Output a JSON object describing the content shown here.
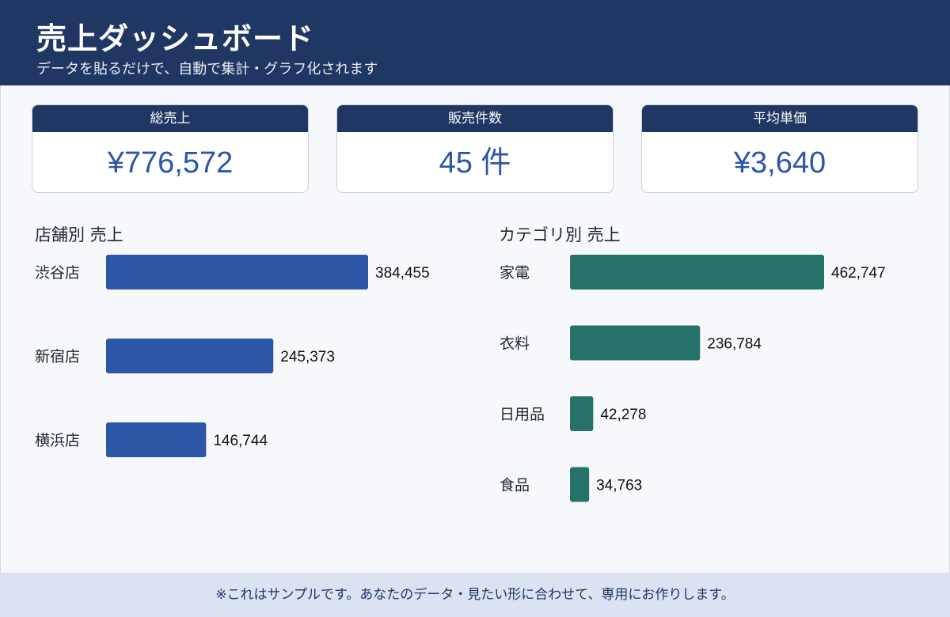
{
  "header": {
    "title": "売上ダッシュボード",
    "subtitle": "データを貼るだけで、自動で集計・グラフ化されます"
  },
  "kpis": [
    {
      "label": "総売上",
      "value": "¥776,572"
    },
    {
      "label": "販売件数",
      "value": "45 件"
    },
    {
      "label": "平均単価",
      "value": "¥3,640"
    }
  ],
  "colors": {
    "header": "#203763",
    "store_bar": "#2c56a6",
    "category_bar": "#26716a",
    "footer_bg": "#dbe3f2"
  },
  "chart_data": [
    {
      "type": "bar",
      "orientation": "horizontal",
      "title": "店舗別 売上",
      "categories": [
        "渋谷店",
        "新宿店",
        "横浜店"
      ],
      "values": [
        384455,
        245373,
        146744
      ],
      "value_labels": [
        "384,455",
        "245,373",
        "146,744"
      ],
      "grid": false
    },
    {
      "type": "bar",
      "orientation": "horizontal",
      "title": "カテゴリ別 売上",
      "categories": [
        "家電",
        "衣料",
        "日用品",
        "食品"
      ],
      "values": [
        462747,
        236784,
        42278,
        34763
      ],
      "value_labels": [
        "462,747",
        "236,784",
        "42,278",
        "34,763"
      ],
      "grid": false
    }
  ],
  "footer": {
    "note": "※これはサンプルです。あなたのデータ・見たい形に合わせて、専用にお作りします。"
  }
}
